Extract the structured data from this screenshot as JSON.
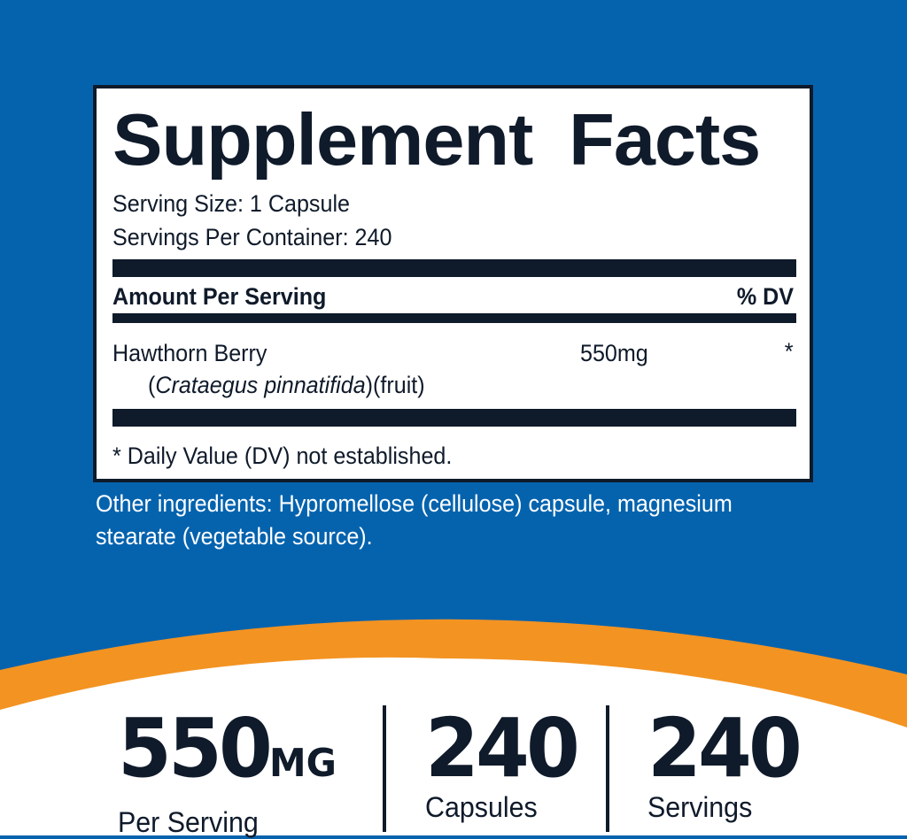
{
  "colors": {
    "background": "#0563ae",
    "accent": "#f39322",
    "ink": "#0f1a2a"
  },
  "label": {
    "title": "Supplement Facts",
    "serving_size": "Serving Size: 1 Capsule",
    "servings_per_container": "Servings Per Container: 240",
    "amount_header": "Amount Per Serving",
    "dv_header": "% DV",
    "ingredient": {
      "name": "Hawthorn Berry",
      "paren_open": "(",
      "latin": "Crataegus pinnatifida",
      "paren_close": ")(fruit)",
      "amount": "550mg",
      "dv": "*"
    },
    "footnote": "* Daily Value (DV) not established."
  },
  "other_ingredients": [
    "Other ingredients: Hypromellose (cellulose) capsule, magnesium",
    "stearate (vegetable source)."
  ],
  "stats": [
    {
      "value": "550",
      "unit": "MG",
      "label": "Per Serving"
    },
    {
      "value": "240",
      "unit": "",
      "label": "Capsules"
    },
    {
      "value": "240",
      "unit": "",
      "label": "Servings"
    }
  ]
}
